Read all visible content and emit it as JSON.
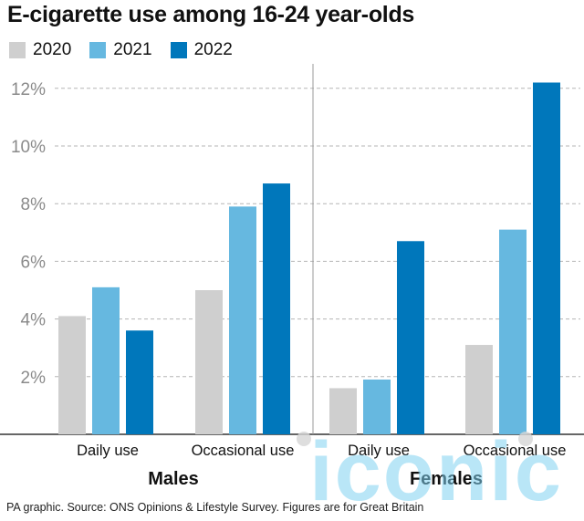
{
  "title": "E-cigarette use among 16-24 year-olds",
  "legend": [
    {
      "label": "2020",
      "color": "#cfcfcf"
    },
    {
      "label": "2021",
      "color": "#66b8e0"
    },
    {
      "label": "2022",
      "color": "#0077bb"
    }
  ],
  "footer": "PA graphic. Source: ONS Opinions & Lifestyle Survey. Figures are for Great Britain",
  "watermark": "iconic",
  "chart_data": {
    "type": "bar",
    "title": "E-cigarette use among 16-24 year-olds",
    "y_ticks": [
      "2%",
      "4%",
      "6%",
      "8%",
      "10%",
      "12%"
    ],
    "ylim": [
      0,
      12.5
    ],
    "grid": true,
    "legend_position": "top-left",
    "groups": [
      {
        "name": "Males",
        "categories": [
          "Daily use",
          "Occasional use"
        ],
        "series": [
          {
            "name": "2020",
            "values": [
              4.1,
              5.0
            ]
          },
          {
            "name": "2021",
            "values": [
              5.1,
              7.9
            ]
          },
          {
            "name": "2022",
            "values": [
              3.6,
              8.7
            ]
          }
        ]
      },
      {
        "name": "Females",
        "categories": [
          "Daily use",
          "Occasional use"
        ],
        "series": [
          {
            "name": "2020",
            "values": [
              1.6,
              3.1
            ]
          },
          {
            "name": "2021",
            "values": [
              1.9,
              7.1
            ]
          },
          {
            "name": "2022",
            "values": [
              6.7,
              12.2
            ]
          }
        ]
      }
    ]
  }
}
